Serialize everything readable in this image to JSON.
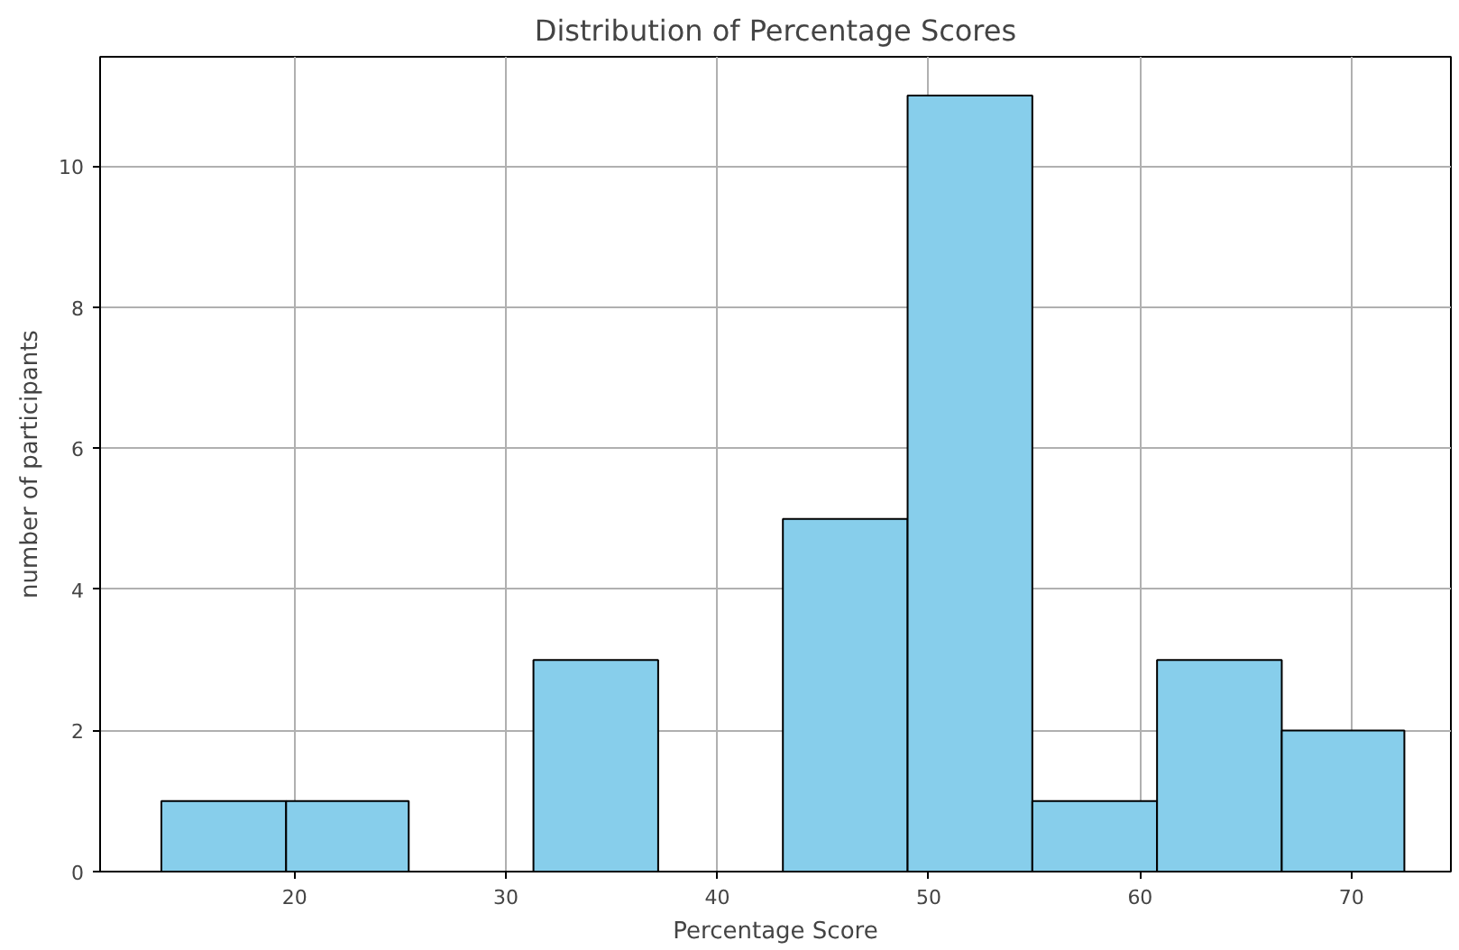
{
  "chart_data": {
    "type": "histogram",
    "title": "Distribution of Percentage Scores",
    "xlabel": "Percentage Score",
    "ylabel": "number of participants",
    "bins": [
      13.7,
      19.6,
      25.4,
      31.3,
      37.2,
      43.1,
      49.0,
      54.9,
      60.8,
      66.7,
      72.5
    ],
    "values": [
      1,
      1,
      0,
      3,
      0,
      5,
      11,
      1,
      3,
      2
    ],
    "color": "#87ceeb",
    "xlim": [
      10.8,
      74.7
    ],
    "xticks": [
      20,
      30,
      40,
      50,
      60,
      70
    ],
    "ylim": [
      0,
      11.55
    ],
    "yticks": [
      0,
      2,
      4,
      6,
      8,
      10
    ],
    "grid": true
  }
}
